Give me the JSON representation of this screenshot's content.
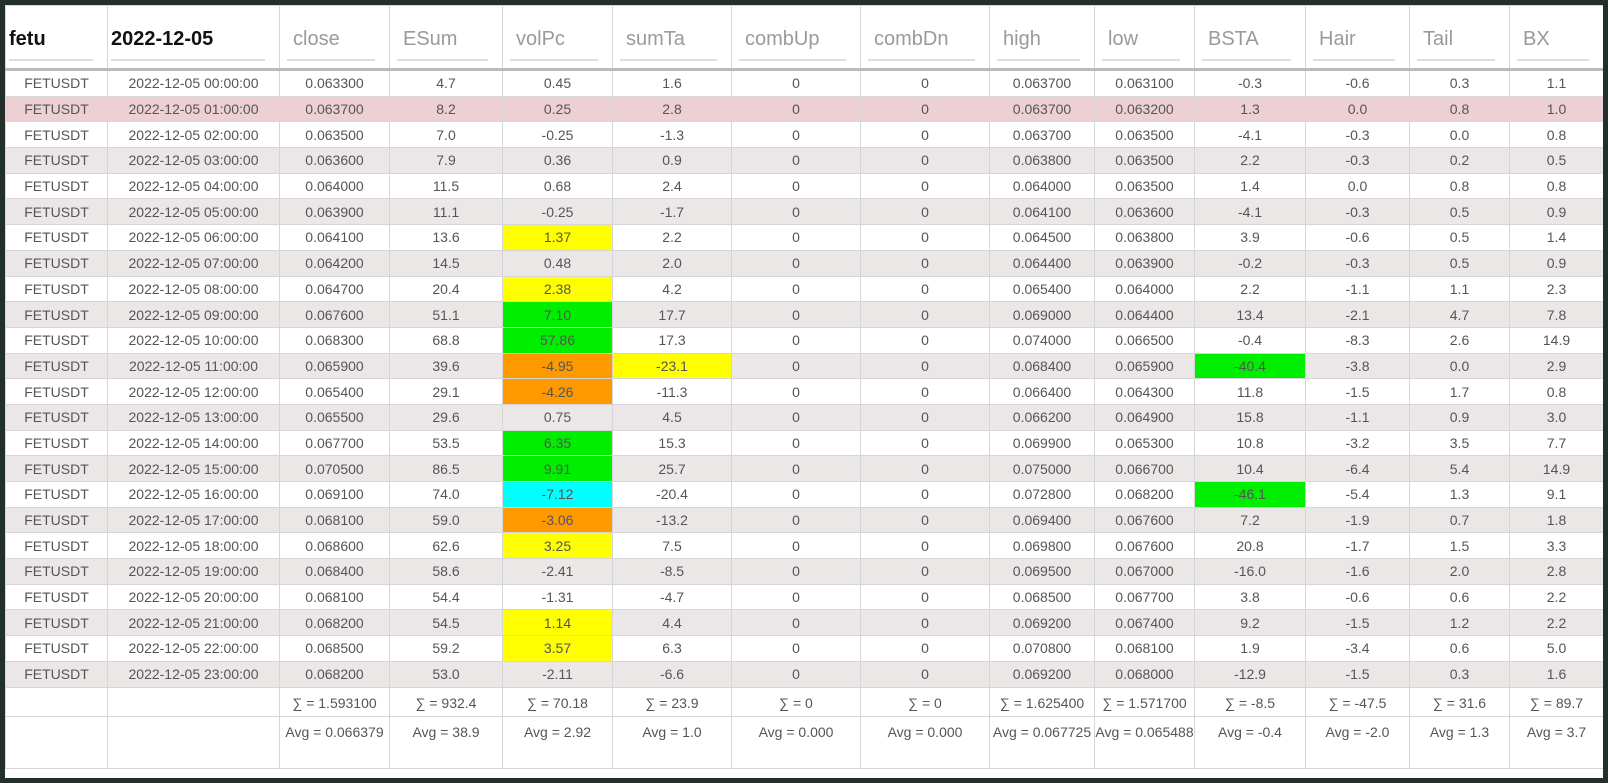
{
  "table": {
    "title": "fetu",
    "date": "2022-12-05",
    "columns": [
      "close",
      "ESum",
      "volPc",
      "sumTa",
      "combUp",
      "combDn",
      "high",
      "low",
      "BSTA",
      "Hair",
      "Tail",
      "BX"
    ],
    "rows": [
      {
        "cells": [
          "FETUSDT",
          "2022-12-05 00:00:00",
          "0.063300",
          "4.7",
          "0.45",
          "1.6",
          "0",
          "0",
          "0.063700",
          "0.063100",
          "-0.3",
          "-0.6",
          "0.3",
          "1.1"
        ]
      },
      {
        "color": "#ecd0d3",
        "cells": [
          "FETUSDT",
          "2022-12-05 01:00:00",
          "0.063700",
          "8.2",
          "0.25",
          "2.8",
          "0",
          "0",
          "0.063700",
          "0.063200",
          "1.3",
          "0.0",
          "0.8",
          "1.0"
        ]
      },
      {
        "cells": [
          "FETUSDT",
          "2022-12-05 02:00:00",
          "0.063500",
          "7.0",
          "-0.25",
          "-1.3",
          "0",
          "0",
          "0.063700",
          "0.063500",
          "-4.1",
          "-0.3",
          "0.0",
          "0.8"
        ]
      },
      {
        "cells": [
          "FETUSDT",
          "2022-12-05 03:00:00",
          "0.063600",
          "7.9",
          "0.36",
          "0.9",
          "0",
          "0",
          "0.063800",
          "0.063500",
          "2.2",
          "-0.3",
          "0.2",
          "0.5"
        ]
      },
      {
        "cells": [
          "FETUSDT",
          "2022-12-05 04:00:00",
          "0.064000",
          "11.5",
          "0.68",
          "2.4",
          "0",
          "0",
          "0.064000",
          "0.063500",
          "1.4",
          "0.0",
          "0.8",
          "0.8"
        ]
      },
      {
        "cells": [
          "FETUSDT",
          "2022-12-05 05:00:00",
          "0.063900",
          "11.1",
          "-0.25",
          "-1.7",
          "0",
          "0",
          "0.064100",
          "0.063600",
          "-4.1",
          "-0.3",
          "0.5",
          "0.9"
        ]
      },
      {
        "cells": [
          "FETUSDT",
          "2022-12-05 06:00:00",
          "0.064100",
          "13.6",
          {
            "text": "1.37",
            "color": "#ffff00"
          },
          "2.2",
          "0",
          "0",
          "0.064500",
          "0.063800",
          "3.9",
          "-0.6",
          "0.5",
          "1.4"
        ]
      },
      {
        "cells": [
          "FETUSDT",
          "2022-12-05 07:00:00",
          "0.064200",
          "14.5",
          "0.48",
          "2.0",
          "0",
          "0",
          "0.064400",
          "0.063900",
          "-0.2",
          "-0.3",
          "0.5",
          "0.9"
        ]
      },
      {
        "cells": [
          "FETUSDT",
          "2022-12-05 08:00:00",
          "0.064700",
          "20.4",
          {
            "text": "2.38",
            "color": "#ffff00"
          },
          "4.2",
          "0",
          "0",
          "0.065400",
          "0.064000",
          "2.2",
          "-1.1",
          "1.1",
          "2.3"
        ]
      },
      {
        "cells": [
          "FETUSDT",
          "2022-12-05 09:00:00",
          "0.067600",
          "51.1",
          {
            "text": "7.10",
            "color": "#00ee00"
          },
          "17.7",
          "0",
          "0",
          "0.069000",
          "0.064400",
          "13.4",
          "-2.1",
          "4.7",
          "7.8"
        ]
      },
      {
        "cells": [
          "FETUSDT",
          "2022-12-05 10:00:00",
          "0.068300",
          "68.8",
          {
            "text": "57.86",
            "color": "#00ee00"
          },
          "17.3",
          "0",
          "0",
          "0.074000",
          "0.066500",
          "-0.4",
          "-8.3",
          "2.6",
          "14.9"
        ]
      },
      {
        "cells": [
          "FETUSDT",
          "2022-12-05 11:00:00",
          "0.065900",
          "39.6",
          {
            "text": "-4.95",
            "color": "#ff9900"
          },
          {
            "text": "-23.1",
            "color": "#ffff00"
          },
          "0",
          "0",
          "0.068400",
          "0.065900",
          {
            "text": "-40.4",
            "color": "#00ee00"
          },
          "-3.8",
          "0.0",
          "2.9"
        ]
      },
      {
        "cells": [
          "FETUSDT",
          "2022-12-05 12:00:00",
          "0.065400",
          "29.1",
          {
            "text": "-4.26",
            "color": "#ff9900"
          },
          "-11.3",
          "0",
          "0",
          "0.066400",
          "0.064300",
          "11.8",
          "-1.5",
          "1.7",
          "0.8"
        ]
      },
      {
        "cells": [
          "FETUSDT",
          "2022-12-05 13:00:00",
          "0.065500",
          "29.6",
          "0.75",
          "4.5",
          "0",
          "0",
          "0.066200",
          "0.064900",
          "15.8",
          "-1.1",
          "0.9",
          "3.0"
        ]
      },
      {
        "cells": [
          "FETUSDT",
          "2022-12-05 14:00:00",
          "0.067700",
          "53.5",
          {
            "text": "6.35",
            "color": "#00ee00"
          },
          "15.3",
          "0",
          "0",
          "0.069900",
          "0.065300",
          "10.8",
          "-3.2",
          "3.5",
          "7.7"
        ]
      },
      {
        "cells": [
          "FETUSDT",
          "2022-12-05 15:00:00",
          "0.070500",
          "86.5",
          {
            "text": "9.91",
            "color": "#00ee00"
          },
          "25.7",
          "0",
          "0",
          "0.075000",
          "0.066700",
          "10.4",
          "-6.4",
          "5.4",
          "14.9"
        ]
      },
      {
        "cells": [
          "FETUSDT",
          "2022-12-05 16:00:00",
          "0.069100",
          "74.0",
          {
            "text": "-7.12",
            "color": "#00ffff"
          },
          "-20.4",
          "0",
          "0",
          "0.072800",
          "0.068200",
          {
            "text": "-46.1",
            "color": "#00ee00"
          },
          "-5.4",
          "1.3",
          "9.1"
        ]
      },
      {
        "cells": [
          "FETUSDT",
          "2022-12-05 17:00:00",
          "0.068100",
          "59.0",
          {
            "text": "-3.06",
            "color": "#ff9900"
          },
          "-13.2",
          "0",
          "0",
          "0.069400",
          "0.067600",
          "7.2",
          "-1.9",
          "0.7",
          "1.8"
        ]
      },
      {
        "cells": [
          "FETUSDT",
          "2022-12-05 18:00:00",
          "0.068600",
          "62.6",
          {
            "text": "3.25",
            "color": "#ffff00"
          },
          "7.5",
          "0",
          "0",
          "0.069800",
          "0.067600",
          "20.8",
          "-1.7",
          "1.5",
          "3.3"
        ]
      },
      {
        "cells": [
          "FETUSDT",
          "2022-12-05 19:00:00",
          "0.068400",
          "58.6",
          "-2.41",
          "-8.5",
          "0",
          "0",
          "0.069500",
          "0.067000",
          "-16.0",
          "-1.6",
          "2.0",
          "2.8"
        ]
      },
      {
        "cells": [
          "FETUSDT",
          "2022-12-05 20:00:00",
          "0.068100",
          "54.4",
          "-1.31",
          "-4.7",
          "0",
          "0",
          "0.068500",
          "0.067700",
          "3.8",
          "-0.6",
          "0.6",
          "2.2"
        ]
      },
      {
        "cells": [
          "FETUSDT",
          "2022-12-05 21:00:00",
          "0.068200",
          "54.5",
          {
            "text": "1.14",
            "color": "#ffff00"
          },
          "4.4",
          "0",
          "0",
          "0.069200",
          "0.067400",
          "9.2",
          "-1.5",
          "1.2",
          "2.2"
        ]
      },
      {
        "cells": [
          "FETUSDT",
          "2022-12-05 22:00:00",
          "0.068500",
          "59.2",
          {
            "text": "3.57",
            "color": "#ffff00"
          },
          "6.3",
          "0",
          "0",
          "0.070800",
          "0.068100",
          "1.9",
          "-3.4",
          "0.6",
          "5.0"
        ]
      },
      {
        "cells": [
          "FETUSDT",
          "2022-12-05 23:00:00",
          "0.068200",
          "53.0",
          "-2.11",
          "-6.6",
          "0",
          "0",
          "0.069200",
          "0.068000",
          "-12.9",
          "-1.5",
          "0.3",
          "1.6"
        ]
      }
    ],
    "sums": [
      "∑ = 1.593100",
      "∑ = 932.4",
      "∑ = 70.18",
      "∑ = 23.9",
      "∑ = 0",
      "∑ = 0",
      "∑ = 1.625400",
      "∑ = 1.571700",
      "∑ = -8.5",
      "∑ = -47.5",
      "∑ = 31.6",
      "∑ = 89.7"
    ],
    "averages": [
      "Avg = 0.066379",
      "Avg = 38.9",
      "Avg = 2.92",
      "Avg = 1.0",
      "Avg = 0.000",
      "Avg = 0.000",
      "Avg = 0.067725",
      "Avg = 0.065488",
      "Avg = -0.4",
      "Avg = -2.0",
      "Avg = 1.3",
      "Avg = 3.7"
    ]
  }
}
